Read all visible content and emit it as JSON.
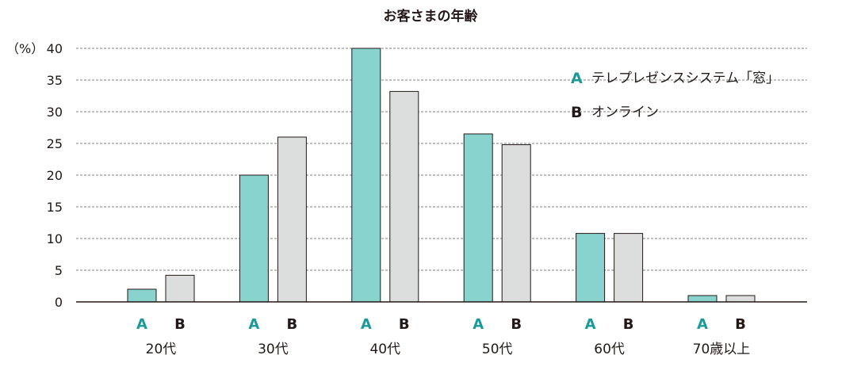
{
  "chart_data": {
    "type": "bar",
    "title": "お客さまの年齢",
    "ylabel": "（%）",
    "ylim": [
      0,
      40
    ],
    "yticks": [
      0,
      5,
      10,
      15,
      20,
      25,
      30,
      35,
      40
    ],
    "grid": true,
    "legend_position": "top-right",
    "categories": [
      "20代",
      "30代",
      "40代",
      "50代",
      "60代",
      "70歳以上"
    ],
    "series": [
      {
        "key": "A",
        "name": "テレプレゼンスシステム「窓」",
        "color": "#88d3cd",
        "key_color": "#1a9a9a",
        "values": [
          2,
          20,
          40,
          26.5,
          10.8,
          1
        ]
      },
      {
        "key": "B",
        "name": "オンライン",
        "color": "#dcdddd",
        "key_color": "#231815",
        "values": [
          4.2,
          26,
          33.2,
          24.8,
          10.8,
          1
        ]
      }
    ]
  }
}
